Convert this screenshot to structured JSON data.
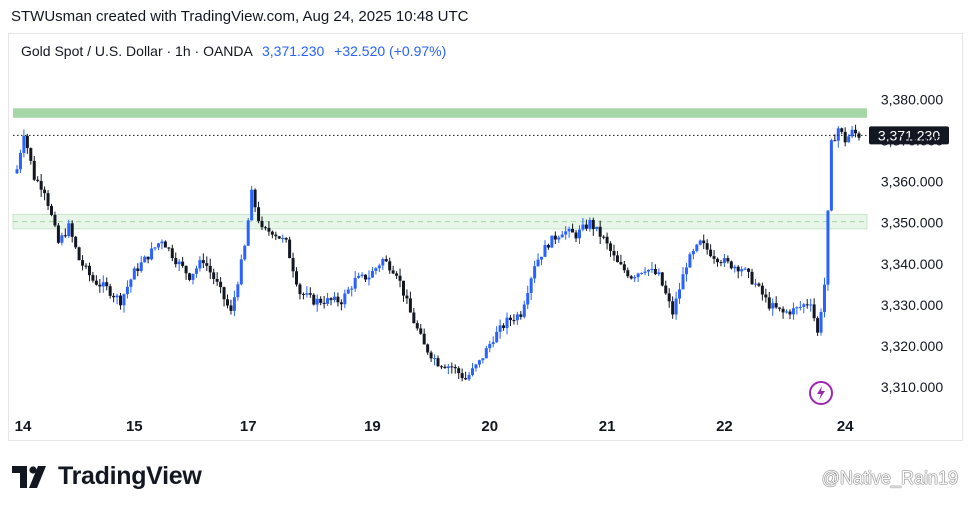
{
  "caption": "STWUsman created with TradingView.com, Aug 24, 2025 10:48 UTC",
  "symbol": {
    "name": "Gold Spot / U.S. Dollar · 1h · OANDA",
    "price": "3,371.230",
    "change": "+32.520 (+0.97%)"
  },
  "brand": "TradingView",
  "watermark": "@Native_Rain19",
  "colors": {
    "up": "#2962ff",
    "down": "#131722",
    "zone": "#a5d6a7",
    "zone_light": "#e8f5e9",
    "price_label_bg": "#131722"
  },
  "chart_data": {
    "type": "candlestick",
    "y_ticks": [
      "3,380.000",
      "3,370.000",
      "3,360.000",
      "3,350.000",
      "3,340.000",
      "3,330.000",
      "3,320.000",
      "3,310.000"
    ],
    "y_tick_values": [
      3380,
      3370,
      3360,
      3350,
      3340,
      3330,
      3320,
      3310
    ],
    "ylim": [
      3303,
      3391
    ],
    "x_ticks": [
      "14",
      "15",
      "17",
      "19",
      "20",
      "21",
      "22",
      "24"
    ],
    "current_price": 3371.23,
    "current_price_label": "3,371.230",
    "zones": [
      {
        "from": 3375.5,
        "to": 3377.8,
        "style": "resistance"
      },
      {
        "from": 3348.5,
        "to": 3352.0,
        "style": "support"
      }
    ],
    "close_path": [
      [
        0,
        3363
      ],
      [
        2,
        3372
      ],
      [
        5,
        3361
      ],
      [
        8,
        3358
      ],
      [
        12,
        3345
      ],
      [
        15,
        3349
      ],
      [
        18,
        3341
      ],
      [
        22,
        3336
      ],
      [
        26,
        3334
      ],
      [
        30,
        3331
      ],
      [
        34,
        3338
      ],
      [
        38,
        3342
      ],
      [
        42,
        3346
      ],
      [
        46,
        3341
      ],
      [
        50,
        3337
      ],
      [
        54,
        3341
      ],
      [
        58,
        3335
      ],
      [
        62,
        3328
      ],
      [
        66,
        3344
      ],
      [
        68,
        3357
      ],
      [
        71,
        3348
      ],
      [
        74,
        3348
      ],
      [
        78,
        3345
      ],
      [
        82,
        3333
      ],
      [
        86,
        3331
      ],
      [
        90,
        3331
      ],
      [
        94,
        3331
      ],
      [
        98,
        3336
      ],
      [
        102,
        3337
      ],
      [
        106,
        3341
      ],
      [
        110,
        3338
      ],
      [
        114,
        3328
      ],
      [
        118,
        3320
      ],
      [
        122,
        3316
      ],
      [
        126,
        3315
      ],
      [
        130,
        3312
      ],
      [
        134,
        3316
      ],
      [
        138,
        3322
      ],
      [
        142,
        3326
      ],
      [
        146,
        3328
      ],
      [
        150,
        3340
      ],
      [
        154,
        3345
      ],
      [
        158,
        3348
      ],
      [
        162,
        3347
      ],
      [
        166,
        3350
      ],
      [
        170,
        3346
      ],
      [
        174,
        3340
      ],
      [
        178,
        3337
      ],
      [
        182,
        3339
      ],
      [
        186,
        3337
      ],
      [
        190,
        3328
      ],
      [
        194,
        3340
      ],
      [
        198,
        3345
      ],
      [
        202,
        3342
      ],
      [
        206,
        3340
      ],
      [
        210,
        3339
      ],
      [
        214,
        3335
      ],
      [
        218,
        3330
      ],
      [
        222,
        3328
      ],
      [
        226,
        3329
      ],
      [
        230,
        3331
      ],
      [
        232,
        3323
      ],
      [
        234,
        3335
      ],
      [
        236,
        3369
      ],
      [
        238,
        3373
      ],
      [
        240,
        3370
      ],
      [
        242,
        3372
      ],
      [
        244,
        3371.23
      ]
    ],
    "n_candles": 245,
    "x_tick_indices": [
      0,
      34,
      67,
      103,
      137,
      171,
      205,
      240
    ]
  }
}
